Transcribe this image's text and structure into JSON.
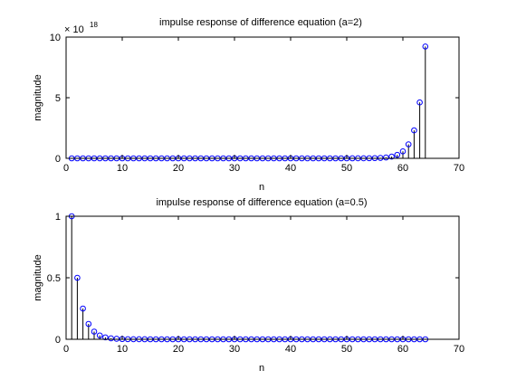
{
  "chart_data": [
    {
      "type": "stem",
      "title": "impulse response of difference  equation (a=2)",
      "xlabel": "n",
      "ylabel": "magnitude",
      "xlim": [
        0,
        70
      ],
      "ylim": [
        0,
        10
      ],
      "y_multiplier_text": "× 10",
      "y_multiplier_exponent": "18",
      "x_ticks": [
        "0",
        "10",
        "20",
        "30",
        "40",
        "50",
        "60",
        "70"
      ],
      "y_ticks": [
        "0",
        "5",
        "10"
      ],
      "marker_color": "#0000ff",
      "stem_color": "#000000",
      "n_start": 1,
      "n_end": 64,
      "formula": "2^(n-1), plotted in units of 1e18",
      "grid": false
    },
    {
      "type": "stem",
      "title": "impulse response of difference equation (a=0.5)",
      "xlabel": "n",
      "ylabel": "magnitude",
      "xlim": [
        0,
        70
      ],
      "ylim": [
        0,
        1
      ],
      "x_ticks": [
        "0",
        "10",
        "20",
        "30",
        "40",
        "50",
        "60",
        "70"
      ],
      "y_ticks": [
        "0",
        "0.5",
        "1"
      ],
      "marker_color": "#0000ff",
      "stem_color": "#000000",
      "n_start": 1,
      "n_end": 64,
      "formula": "0.5^(n-1)",
      "grid": false
    }
  ]
}
